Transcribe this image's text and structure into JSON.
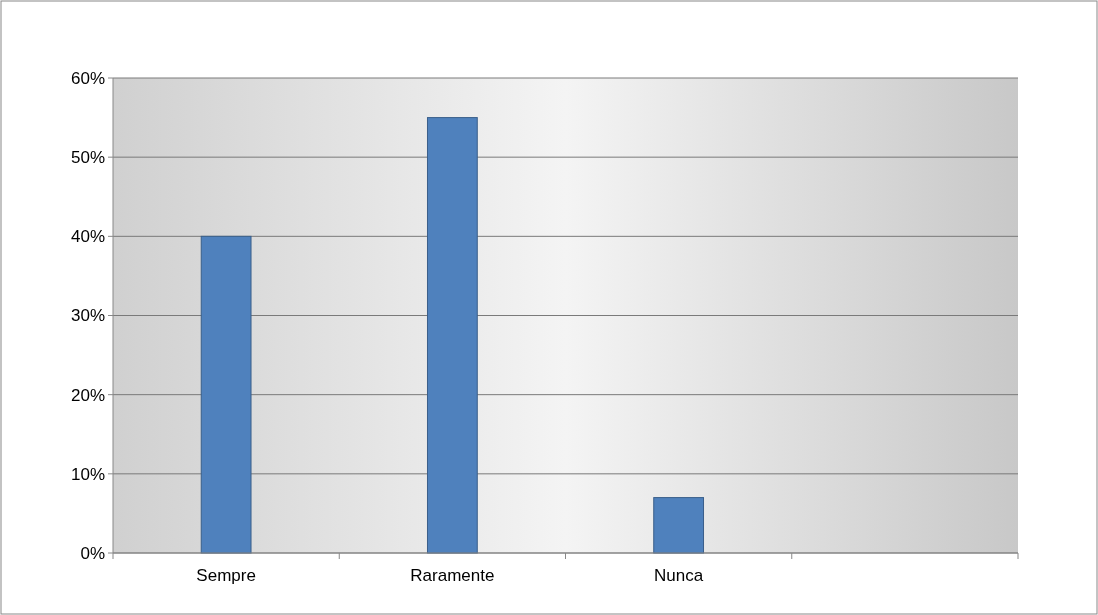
{
  "chart_data": {
    "type": "bar",
    "categories": [
      "Sempre",
      "Raramente",
      "Nunca",
      null
    ],
    "values": [
      40,
      55,
      7,
      null
    ],
    "color": "#4f81bd",
    "ylim": [
      0,
      60
    ],
    "yticks": [
      {
        "value": 0,
        "label": "0%"
      },
      {
        "value": 10,
        "label": "10%"
      },
      {
        "value": 20,
        "label": "20%"
      },
      {
        "value": 30,
        "label": "30%"
      },
      {
        "value": 40,
        "label": "40%"
      },
      {
        "value": 50,
        "label": "50%"
      },
      {
        "value": 60,
        "label": "60%"
      }
    ],
    "grid": "y"
  }
}
